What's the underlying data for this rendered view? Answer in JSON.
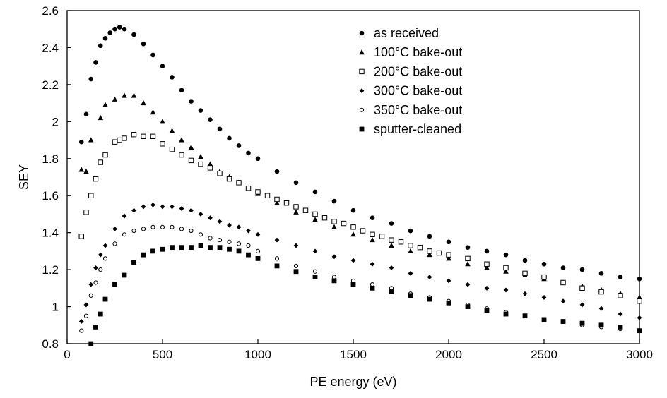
{
  "chart_data": {
    "type": "scatter",
    "title": "",
    "xlabel": "PE energy (eV)",
    "ylabel": "SEY",
    "xlim": [
      0,
      3000
    ],
    "ylim": [
      0.8,
      2.6
    ],
    "xticks": [
      0,
      500,
      1000,
      1500,
      2000,
      2500,
      3000
    ],
    "xtick_labels": [
      "0",
      "500",
      "1000",
      "1500",
      "2000",
      "2500",
      "3000"
    ],
    "yticks": [
      0.8,
      1,
      1.2,
      1.4,
      1.6,
      1.8,
      2,
      2.2,
      2.4,
      2.6
    ],
    "ytick_labels": [
      "0.8",
      "1",
      "1.2",
      "1.4",
      "1.6",
      "1.8",
      "2",
      "2.2",
      "2.4",
      "2.6"
    ],
    "grid": false,
    "legend_position": "top-right",
    "series": [
      {
        "name": "as received",
        "marker": "circle-filled",
        "x": [
          75,
          100,
          125,
          150,
          175,
          200,
          225,
          250,
          275,
          300,
          350,
          400,
          450,
          500,
          550,
          600,
          650,
          700,
          750,
          800,
          850,
          900,
          950,
          1000,
          1100,
          1200,
          1300,
          1400,
          1500,
          1600,
          1700,
          1800,
          1900,
          2000,
          2100,
          2200,
          2300,
          2400,
          2500,
          2600,
          2700,
          2800,
          2900,
          3000
        ],
        "y": [
          1.89,
          2.04,
          2.23,
          2.32,
          2.41,
          2.45,
          2.48,
          2.5,
          2.51,
          2.5,
          2.47,
          2.42,
          2.36,
          2.3,
          2.24,
          2.17,
          2.11,
          2.06,
          2.01,
          1.96,
          1.91,
          1.87,
          1.83,
          1.8,
          1.73,
          1.67,
          1.62,
          1.57,
          1.52,
          1.48,
          1.45,
          1.41,
          1.38,
          1.35,
          1.32,
          1.3,
          1.28,
          1.25,
          1.23,
          1.21,
          1.2,
          1.18,
          1.16,
          1.15
        ]
      },
      {
        "name": "100°C bake-out",
        "marker": "triangle-filled",
        "x": [
          75,
          100,
          125,
          175,
          200,
          250,
          300,
          350,
          400,
          450,
          500,
          550,
          600,
          650,
          700,
          750,
          800,
          850,
          900,
          950,
          1000,
          1100,
          1200,
          1300,
          1400,
          1500,
          1600,
          1700,
          1800,
          1900,
          2000,
          2100,
          2200,
          2300,
          2400,
          2500,
          2600,
          2700,
          2800,
          2900,
          3000
        ],
        "y": [
          1.74,
          1.73,
          1.9,
          2.02,
          2.09,
          2.12,
          2.14,
          2.14,
          2.1,
          2.05,
          2.0,
          1.95,
          1.9,
          1.86,
          1.81,
          1.77,
          1.73,
          1.7,
          1.67,
          1.64,
          1.61,
          1.56,
          1.51,
          1.47,
          1.43,
          1.39,
          1.36,
          1.33,
          1.3,
          1.28,
          1.26,
          1.23,
          1.21,
          1.19,
          1.17,
          1.15,
          1.13,
          1.11,
          1.09,
          1.07,
          1.05
        ]
      },
      {
        "name": "200°C bake-out",
        "marker": "square-open",
        "x": [
          75,
          100,
          125,
          150,
          175,
          200,
          250,
          275,
          300,
          350,
          400,
          450,
          500,
          550,
          600,
          650,
          700,
          750,
          800,
          850,
          900,
          950,
          1000,
          1050,
          1100,
          1150,
          1200,
          1250,
          1300,
          1350,
          1400,
          1450,
          1500,
          1550,
          1600,
          1650,
          1700,
          1750,
          1800,
          1850,
          1900,
          1950,
          2000,
          2100,
          2200,
          2300,
          2400,
          2500,
          2600,
          2700,
          2800,
          2900,
          3000
        ],
        "y": [
          1.38,
          1.51,
          1.6,
          1.69,
          1.78,
          1.82,
          1.89,
          1.9,
          1.91,
          1.93,
          1.92,
          1.92,
          1.88,
          1.85,
          1.82,
          1.79,
          1.77,
          1.75,
          1.72,
          1.69,
          1.67,
          1.64,
          1.62,
          1.6,
          1.58,
          1.56,
          1.54,
          1.52,
          1.5,
          1.48,
          1.46,
          1.45,
          1.43,
          1.41,
          1.39,
          1.38,
          1.36,
          1.35,
          1.33,
          1.32,
          1.3,
          1.29,
          1.28,
          1.26,
          1.23,
          1.21,
          1.18,
          1.16,
          1.13,
          1.1,
          1.08,
          1.06,
          1.03
        ]
      },
      {
        "name": "300°C bake-out",
        "marker": "diamond-filled",
        "x": [
          75,
          100,
          125,
          150,
          175,
          200,
          250,
          300,
          350,
          400,
          450,
          500,
          550,
          600,
          650,
          700,
          750,
          800,
          850,
          900,
          950,
          1000,
          1100,
          1200,
          1300,
          1400,
          1500,
          1600,
          1700,
          1800,
          1900,
          2000,
          2100,
          2200,
          2300,
          2400,
          2500,
          2600,
          2700,
          2800,
          2900,
          3000
        ],
        "y": [
          0.92,
          1.01,
          1.12,
          1.21,
          1.28,
          1.33,
          1.42,
          1.49,
          1.52,
          1.54,
          1.55,
          1.54,
          1.54,
          1.53,
          1.52,
          1.5,
          1.48,
          1.46,
          1.44,
          1.43,
          1.41,
          1.39,
          1.36,
          1.33,
          1.3,
          1.27,
          1.25,
          1.23,
          1.21,
          1.18,
          1.16,
          1.14,
          1.12,
          1.1,
          1.09,
          1.07,
          1.05,
          1.03,
          1.01,
          0.99,
          0.96,
          0.94
        ]
      },
      {
        "name": "350°C bake-out",
        "marker": "circle-open",
        "x": [
          75,
          100,
          125,
          150,
          175,
          200,
          250,
          300,
          350,
          400,
          450,
          500,
          550,
          600,
          650,
          700,
          750,
          800,
          850,
          900,
          950,
          1000,
          1100,
          1200,
          1300,
          1400,
          1500,
          1600,
          1700,
          1800,
          1900,
          2000,
          2100,
          2200,
          2300,
          2400,
          2500,
          2600,
          2700,
          2800,
          2900,
          3000
        ],
        "y": [
          0.87,
          0.95,
          1.06,
          1.13,
          1.2,
          1.26,
          1.34,
          1.39,
          1.41,
          1.42,
          1.43,
          1.43,
          1.43,
          1.42,
          1.41,
          1.39,
          1.37,
          1.36,
          1.35,
          1.34,
          1.33,
          1.3,
          1.26,
          1.22,
          1.19,
          1.16,
          1.14,
          1.12,
          1.1,
          1.07,
          1.05,
          1.03,
          1.01,
          0.99,
          0.97,
          0.95,
          0.93,
          0.92,
          0.9,
          0.89,
          0.88,
          0.87
        ]
      },
      {
        "name": "sputter-cleaned",
        "marker": "square-filled",
        "x": [
          125,
          150,
          175,
          200,
          250,
          300,
          350,
          400,
          450,
          500,
          550,
          600,
          650,
          700,
          750,
          800,
          850,
          900,
          950,
          1000,
          1100,
          1200,
          1300,
          1400,
          1500,
          1600,
          1700,
          1800,
          1900,
          2000,
          2100,
          2200,
          2300,
          2400,
          2500,
          2600,
          2700,
          2800,
          2900,
          3000
        ],
        "y": [
          0.8,
          0.89,
          0.96,
          1.04,
          1.12,
          1.17,
          1.24,
          1.28,
          1.3,
          1.31,
          1.32,
          1.32,
          1.32,
          1.33,
          1.32,
          1.32,
          1.31,
          1.3,
          1.28,
          1.26,
          1.22,
          1.19,
          1.16,
          1.14,
          1.12,
          1.1,
          1.08,
          1.06,
          1.04,
          1.02,
          1.0,
          0.98,
          0.96,
          0.95,
          0.93,
          0.92,
          0.91,
          0.9,
          0.89,
          0.87
        ]
      }
    ]
  }
}
